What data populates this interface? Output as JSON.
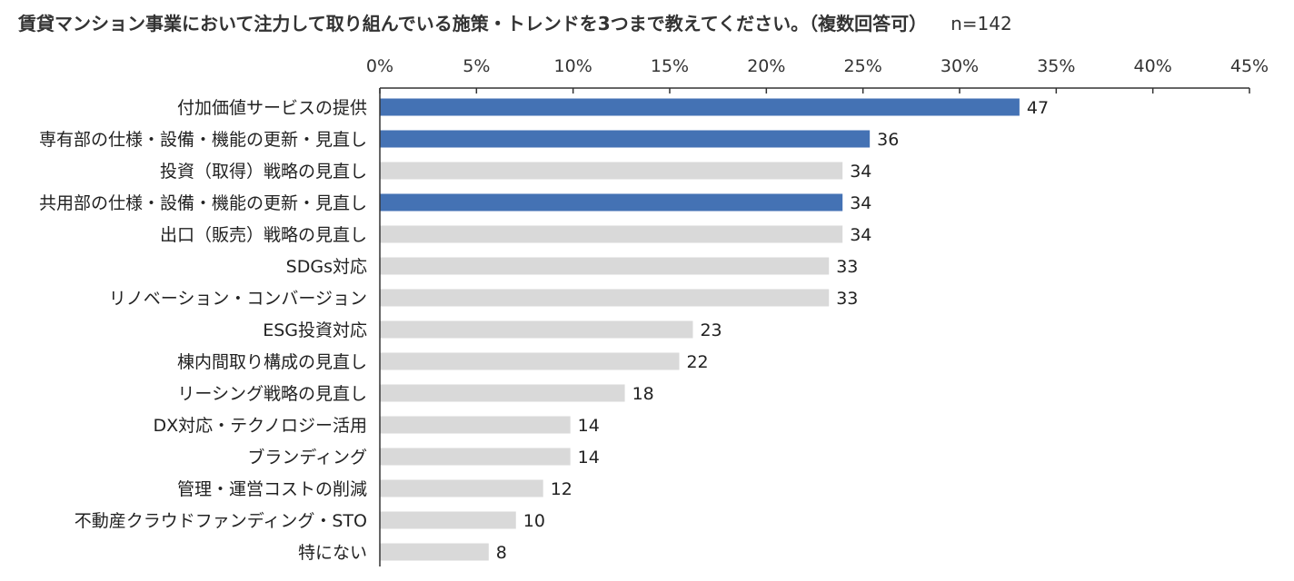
{
  "chart_data": {
    "type": "bar",
    "orientation": "horizontal",
    "title": "賃貸マンション事業において注力して取り組んでいる施策・トレンドを3つまで教えてください。（複数回答可）",
    "sample_size": "n=142",
    "total_respondents": 142,
    "xlim": [
      0,
      45
    ],
    "x_ticks": [
      "0%",
      "5%",
      "10%",
      "15%",
      "20%",
      "25%",
      "30%",
      "35%",
      "40%",
      "45%"
    ],
    "x_axis_position": "top",
    "grid": false,
    "categories": [
      "付加価値サービスの提供",
      "専有部の仕様・設備・機能の更新・見直し",
      "投資（取得）戦略の見直し",
      "共用部の仕様・設備・機能の更新・見直し",
      "出口（販売）戦略の見直し",
      "SDGs対応",
      "リノベーション・コンバージョン",
      "ESG投資対応",
      "棟内間取り構成の見直し",
      "リーシング戦略の見直し",
      "DX対応・テクノロジー活用",
      "ブランディング",
      "管理・運営コストの削減",
      "不動産クラウドファンディング・STO",
      "特にない"
    ],
    "values": [
      47,
      36,
      34,
      34,
      34,
      33,
      33,
      23,
      22,
      18,
      14,
      14,
      12,
      10,
      8
    ],
    "value_labels": [
      "47",
      "36",
      "34",
      "34",
      "34",
      "33",
      "33",
      "23",
      "22",
      "18",
      "14",
      "14",
      "12",
      "10",
      "8"
    ],
    "highlighted": [
      true,
      true,
      false,
      true,
      false,
      false,
      false,
      false,
      false,
      false,
      false,
      false,
      false,
      false,
      false
    ],
    "colors": {
      "highlight": "#4472b4",
      "default": "#d9d9d9",
      "axis": "#333333"
    }
  }
}
